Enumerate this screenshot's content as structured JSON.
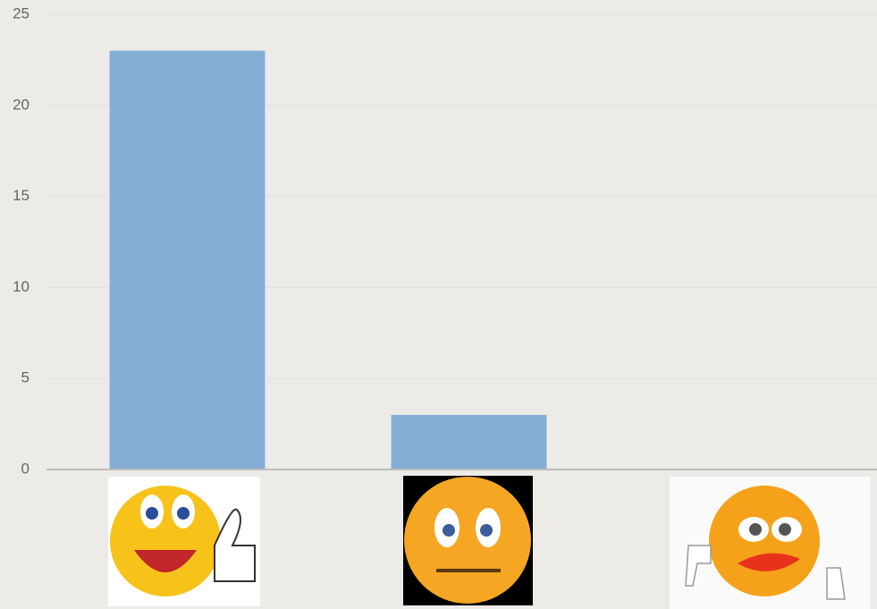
{
  "chart_data": {
    "type": "bar",
    "categories": [
      null,
      null,
      null
    ],
    "values": [
      23,
      3,
      0
    ],
    "color": "#85aed6",
    "ylim": [
      0,
      25
    ],
    "yticks": [
      0,
      5,
      10,
      15,
      20,
      25
    ],
    "grid": true
  }
}
